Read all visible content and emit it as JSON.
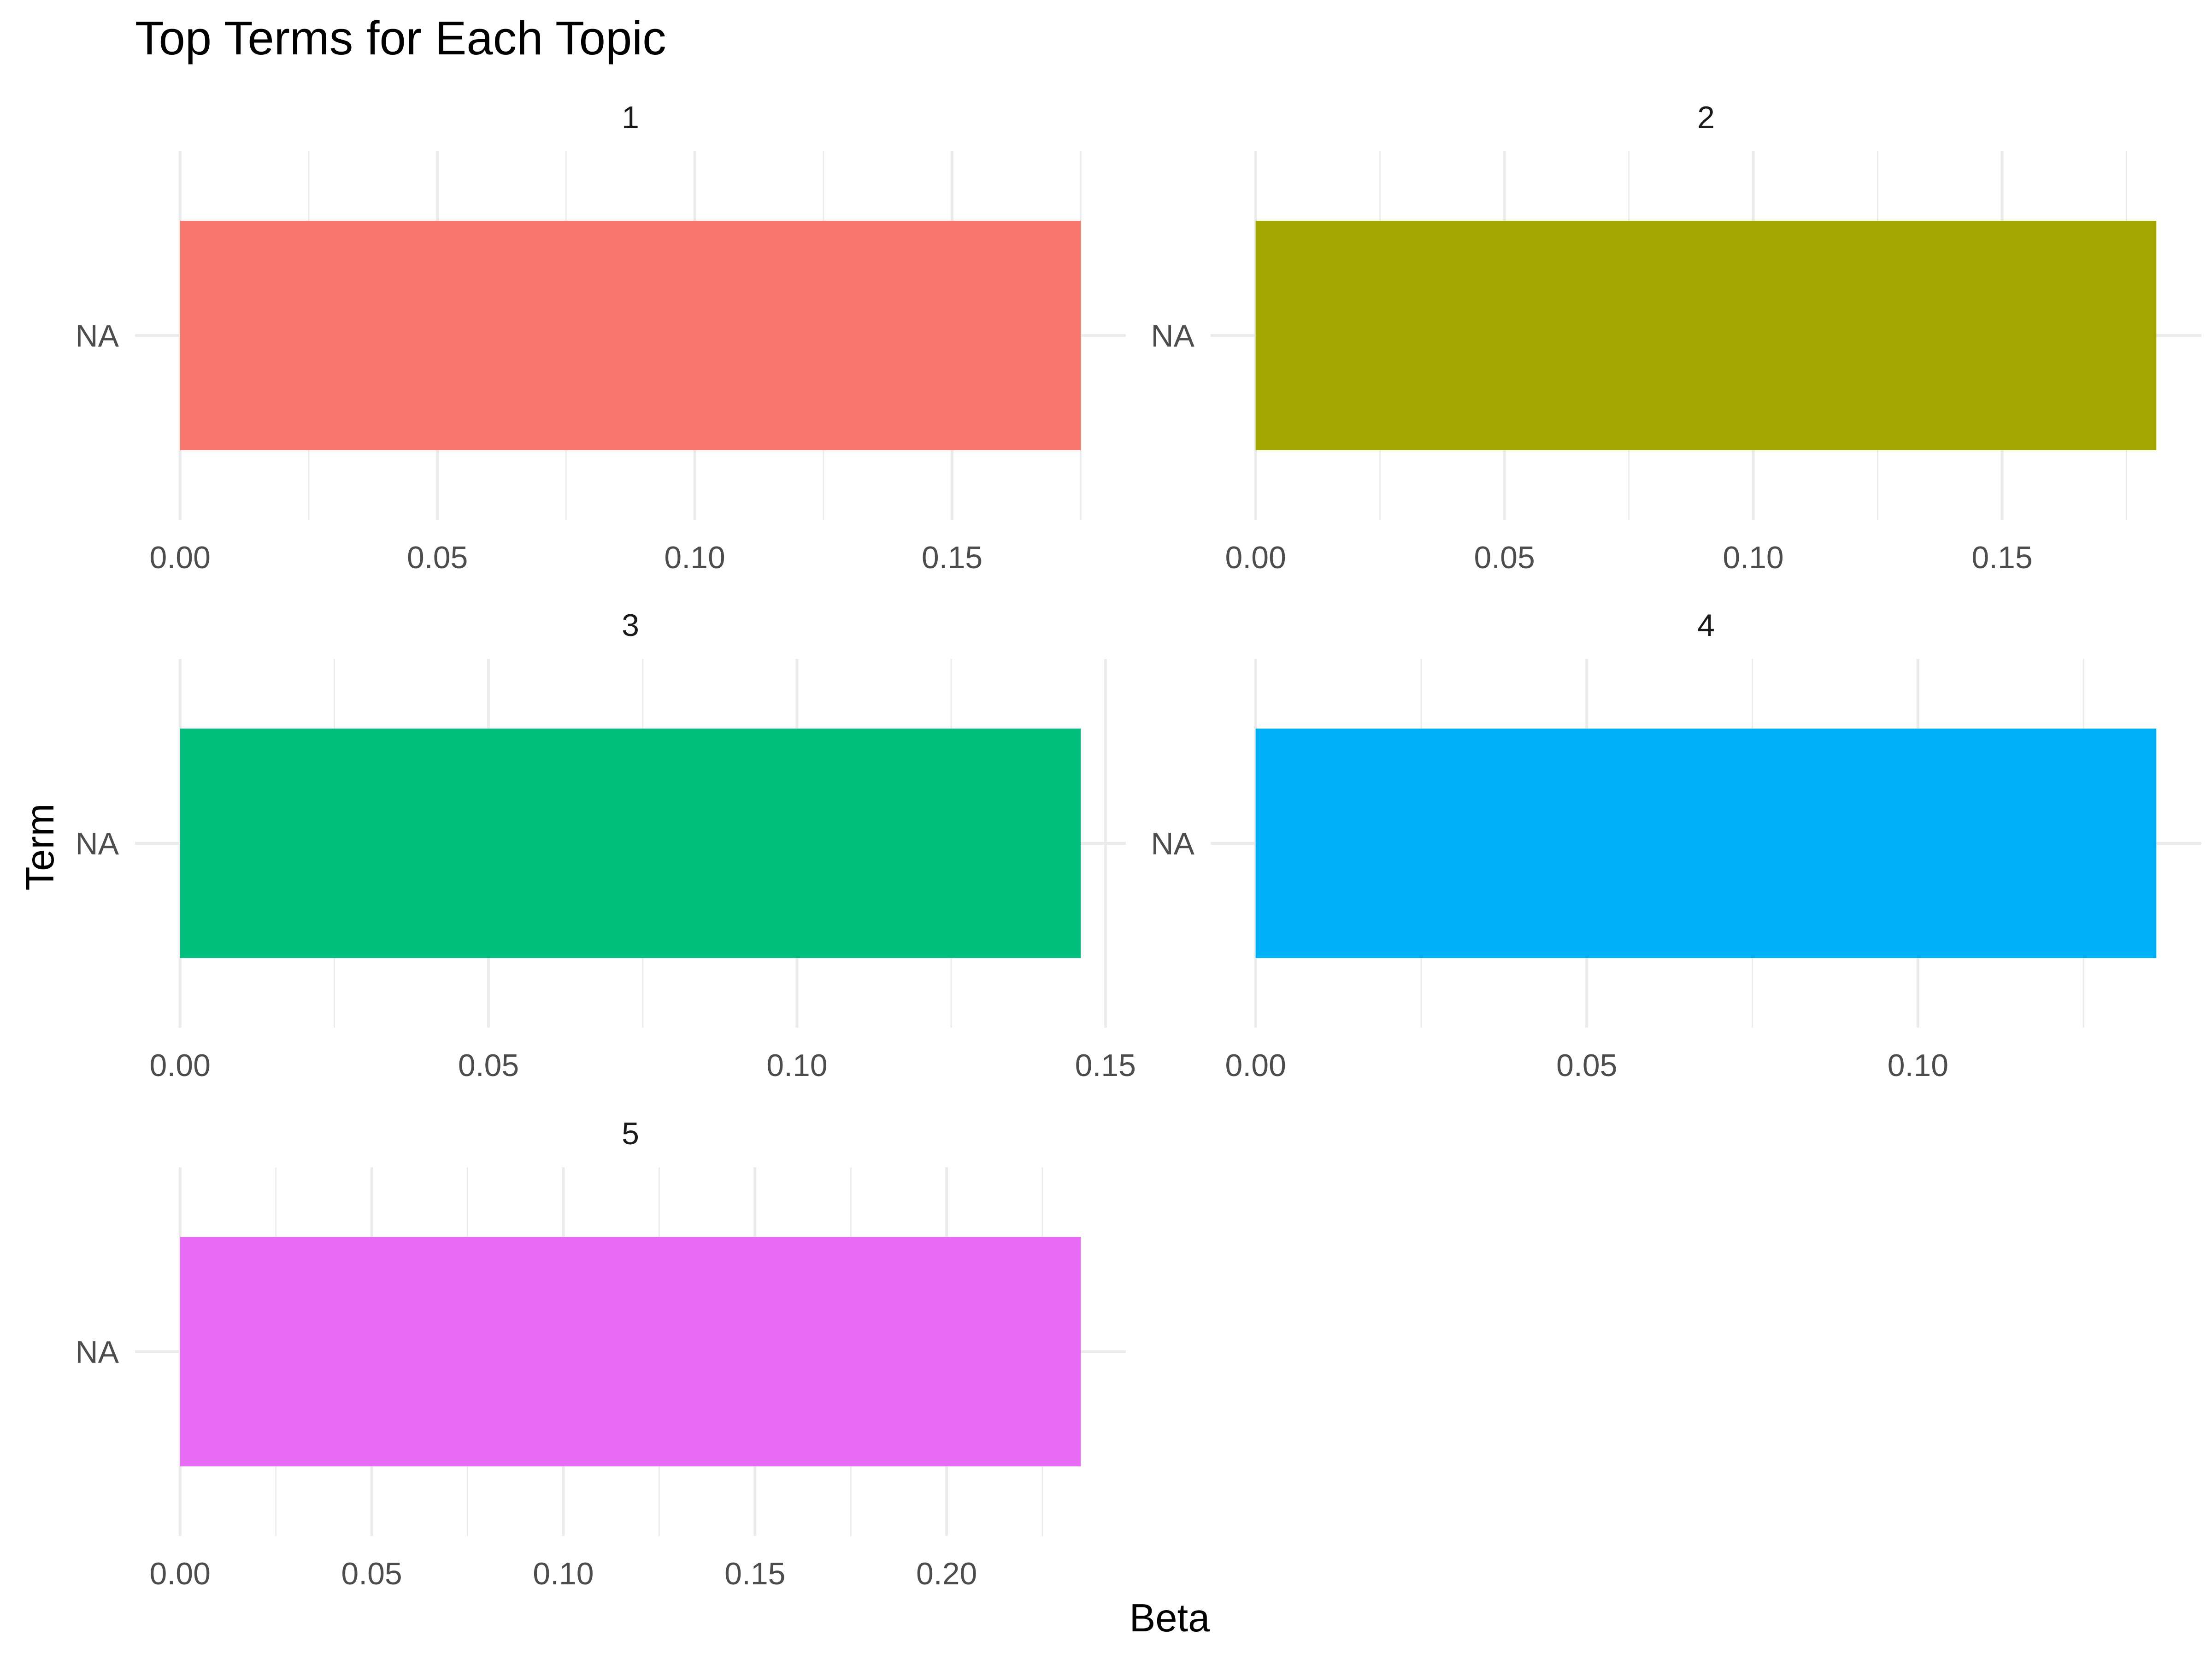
{
  "chart_data": {
    "type": "bar",
    "orientation": "horizontal",
    "title": "Top Terms for Each Topic",
    "xlabel": "Beta",
    "ylabel": "Term",
    "grid": true,
    "legend": "none",
    "facets": [
      {
        "label": "1",
        "categories": [
          "NA"
        ],
        "values": [
          0.175
        ],
        "color": "#F8766D",
        "xlim": [
          0,
          0.175
        ],
        "xticks": [
          0.0,
          0.05,
          0.1,
          0.15
        ],
        "xtick_labels": [
          "0.00",
          "0.05",
          "0.10",
          "0.15"
        ]
      },
      {
        "label": "2",
        "categories": [
          "NA"
        ],
        "values": [
          0.181
        ],
        "color": "#A3A500",
        "xlim": [
          0,
          0.181
        ],
        "xticks": [
          0.0,
          0.05,
          0.1,
          0.15
        ],
        "xtick_labels": [
          "0.00",
          "0.05",
          "0.10",
          "0.15"
        ]
      },
      {
        "label": "3",
        "categories": [
          "NA"
        ],
        "values": [
          0.146
        ],
        "color": "#00BF7D",
        "xlim": [
          0,
          0.146
        ],
        "xticks": [
          0.0,
          0.05,
          0.1,
          0.15
        ],
        "xtick_labels": [
          "0.00",
          "0.05",
          "0.10",
          "0.15"
        ]
      },
      {
        "label": "4",
        "categories": [
          "NA"
        ],
        "values": [
          0.136
        ],
        "color": "#00B0F6",
        "xlim": [
          0,
          0.136
        ],
        "xticks": [
          0.0,
          0.05,
          0.1
        ],
        "xtick_labels": [
          "0.00",
          "0.05",
          "0.10"
        ]
      },
      {
        "label": "5",
        "categories": [
          "NA"
        ],
        "values": [
          0.235
        ],
        "color": "#E76BF3",
        "xlim": [
          0,
          0.235
        ],
        "xticks": [
          0.0,
          0.05,
          0.1,
          0.15,
          0.2
        ],
        "xtick_labels": [
          "0.00",
          "0.05",
          "0.10",
          "0.15",
          "0.20"
        ]
      }
    ]
  }
}
